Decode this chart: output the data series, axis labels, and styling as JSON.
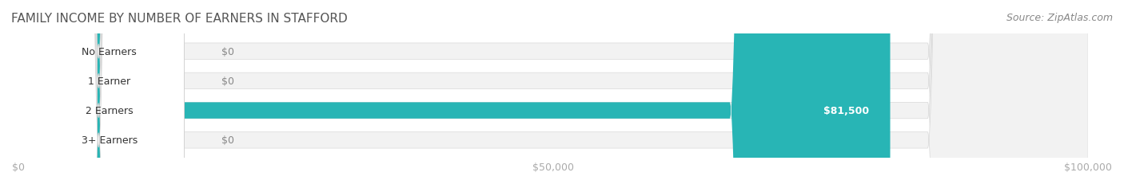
{
  "title": "FAMILY INCOME BY NUMBER OF EARNERS IN STAFFORD",
  "source": "Source: ZipAtlas.com",
  "categories": [
    "No Earners",
    "1 Earner",
    "2 Earners",
    "3+ Earners"
  ],
  "values": [
    0,
    0,
    81500,
    0
  ],
  "bar_colors": [
    "#7ec8d8",
    "#c9a8c8",
    "#28b5b5",
    "#a8aee8"
  ],
  "label_bg_colors": [
    "#d8eef5",
    "#e8d8e8",
    "#1a9090",
    "#d8d8f0"
  ],
  "bar_bg_color": "#f0f0f0",
  "bar_bg_border_color": "#e0e0e0",
  "xlim": [
    0,
    100000
  ],
  "xticks": [
    0,
    50000,
    100000
  ],
  "xtick_labels": [
    "$0",
    "$50,000",
    "$100,000"
  ],
  "value_label_color_bar": "#ffffff",
  "value_label_color_zero": "#888888",
  "title_fontsize": 11,
  "source_fontsize": 9,
  "tick_fontsize": 9,
  "bar_label_fontsize": 9
}
